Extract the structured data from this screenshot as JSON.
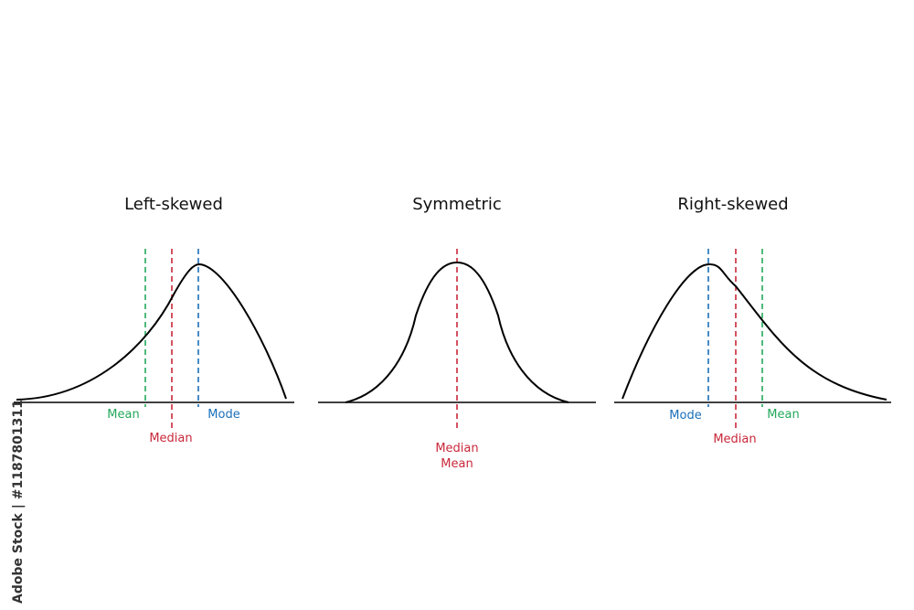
{
  "panels": [
    {
      "title": "Left-skewed",
      "labels": [
        "Mean",
        "Median",
        "Mode"
      ]
    },
    {
      "title": "Symmetric",
      "labels": [
        "Median",
        "Mean"
      ]
    },
    {
      "title": "Right-skewed",
      "labels": [
        "Mode",
        "Median",
        "Mean"
      ]
    }
  ],
  "watermark": "Adobe Stock | #1187801311"
}
